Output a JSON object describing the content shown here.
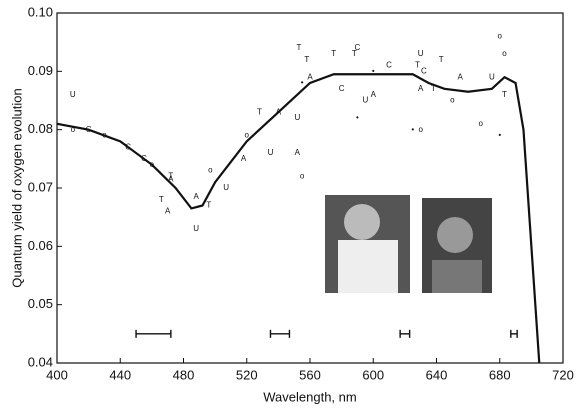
{
  "chart_data": {
    "type": "scatter",
    "x_label": "Wavelength, nm",
    "y_label": "Quantum yield of oxygen evolution",
    "xlim": [
      400,
      720
    ],
    "xticks": [
      400,
      440,
      480,
      520,
      560,
      600,
      640,
      680,
      720
    ],
    "ylim": [
      0.04,
      0.1
    ],
    "yticks": [
      0.04,
      0.05,
      0.06,
      0.07,
      0.08,
      0.09,
      {
        "value": 0.1,
        "label": "0.10"
      }
    ],
    "color": "#111111",
    "line": {
      "x": [
        400,
        420,
        440,
        460,
        475,
        485,
        492,
        500,
        520,
        540,
        560,
        575,
        600,
        625,
        635,
        645,
        660,
        675,
        683,
        690,
        695,
        700,
        705
      ],
      "y": [
        0.081,
        0.08,
        0.078,
        0.074,
        0.07,
        0.0665,
        0.067,
        0.071,
        0.078,
        0.083,
        0.088,
        0.0895,
        0.0895,
        0.0895,
        0.088,
        0.087,
        0.0865,
        0.087,
        0.089,
        0.088,
        0.08,
        0.06,
        0.04
      ]
    },
    "series": [
      {
        "marker": "T",
        "x": [
          466,
          472,
          496,
          528,
          553,
          558,
          575,
          588,
          628,
          638,
          643,
          683
        ],
        "y": [
          0.068,
          0.072,
          0.067,
          0.083,
          0.094,
          0.092,
          0.093,
          0.093,
          0.091,
          0.087,
          0.092,
          0.086
        ]
      },
      {
        "marker": "A",
        "x": [
          470,
          472,
          488,
          518,
          540,
          552,
          560,
          600,
          630,
          655
        ],
        "y": [
          0.066,
          0.0715,
          0.0685,
          0.075,
          0.083,
          0.076,
          0.089,
          0.086,
          0.087,
          0.089
        ]
      },
      {
        "marker": "U",
        "x": [
          410,
          488,
          507,
          535,
          552,
          595,
          630,
          675
        ],
        "y": [
          0.086,
          0.063,
          0.07,
          0.076,
          0.082,
          0.085,
          0.093,
          0.089
        ]
      },
      {
        "marker": "C",
        "x": [
          420,
          445,
          455,
          580,
          590,
          610,
          632
        ],
        "y": [
          0.08,
          0.077,
          0.075,
          0.087,
          0.094,
          0.091,
          0.09
        ]
      },
      {
        "marker": "o",
        "x": [
          410,
          430,
          460,
          497,
          520,
          555,
          630,
          650,
          668,
          680,
          683
        ],
        "y": [
          0.08,
          0.079,
          0.074,
          0.073,
          0.079,
          0.072,
          0.08,
          0.085,
          0.081,
          0.096,
          0.093
        ]
      },
      {
        "marker": "•",
        "x": [
          590,
          625,
          555,
          600,
          680
        ],
        "y": [
          0.082,
          0.08,
          0.088,
          0.09,
          0.079
        ]
      }
    ],
    "error_bars": {
      "x": [
        461,
        541,
        620,
        689
      ],
      "xerr": [
        11,
        6,
        3,
        2
      ],
      "y": [
        0.045,
        0.045,
        0.045,
        0.045
      ]
    }
  }
}
